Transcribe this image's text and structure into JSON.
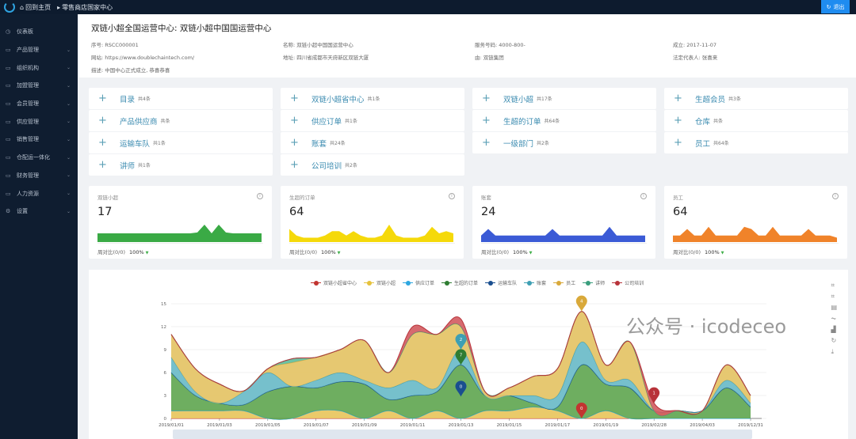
{
  "topbar": {
    "home": "回到主页",
    "breadcrumb": "零售商店国家中心",
    "exit": "退出"
  },
  "sidebar": {
    "items": [
      {
        "label": "仪表板",
        "icon": "dashboard-icon"
      },
      {
        "label": "产品管理",
        "icon": "folder-icon"
      },
      {
        "label": "组织机构",
        "icon": "folder-icon"
      },
      {
        "label": "加盟管理",
        "icon": "folder-icon"
      },
      {
        "label": "会员管理",
        "icon": "folder-icon"
      },
      {
        "label": "供应管理",
        "icon": "folder-icon"
      },
      {
        "label": "销售管理",
        "icon": "folder-icon"
      },
      {
        "label": "仓配运一体化",
        "icon": "folder-icon"
      },
      {
        "label": "财务管理",
        "icon": "folder-icon"
      },
      {
        "label": "人力资源",
        "icon": "folder-icon"
      },
      {
        "label": "设置",
        "icon": "gear-icon"
      }
    ]
  },
  "header": {
    "title": "双链小超全国运营中心: 双链小超中国国运营中心",
    "fields": [
      "序号: RSCC000001",
      "名称: 双链小超中国国运营中心",
      "服务号码: 4000-800-",
      "成立: 2017-11-07",
      "网站: https://www.doublechaintech.com/",
      "地址: 四川省成都市天府新区双链大厦",
      "由: 双链集团",
      "法定代表人: 张喜来",
      "描述: 中国中心正式成立, 恭喜恭喜"
    ]
  },
  "links": [
    {
      "label": "目录",
      "count": "共4条"
    },
    {
      "label": "双链小超省中心",
      "count": "共1条"
    },
    {
      "label": "双链小超",
      "count": "共17条"
    },
    {
      "label": "生超会员",
      "count": "共3条"
    },
    {
      "label": "产品供应商",
      "count": "共条"
    },
    {
      "label": "供应订单",
      "count": "共1条"
    },
    {
      "label": "生超的订单",
      "count": "共64条"
    },
    {
      "label": "仓库",
      "count": "共条"
    },
    {
      "label": "运输车队",
      "count": "共1条"
    },
    {
      "label": "账套",
      "count": "共24条"
    },
    {
      "label": "一级部门",
      "count": "共2条"
    },
    {
      "label": "员工",
      "count": "共64条"
    },
    {
      "label": "讲师",
      "count": "共1条"
    },
    {
      "label": "公司培训",
      "count": "共2条"
    }
  ],
  "stats": [
    {
      "title": "双链小超",
      "value": "17",
      "color": "#3aaa45",
      "compare": "周对比(0/0)",
      "pct": "100%",
      "sparkline": [
        2,
        2,
        2,
        2,
        2,
        2,
        2,
        2,
        2,
        2,
        2,
        2,
        2,
        2,
        2.2,
        4,
        2,
        4,
        2.2,
        2,
        2,
        2,
        2,
        2
      ]
    },
    {
      "title": "生超的订单",
      "value": "64",
      "color": "#f5d90a",
      "compare": "周对比(0/0)",
      "pct": "100%",
      "sparkline": [
        3,
        1.5,
        1,
        1,
        1,
        1.5,
        2.5,
        2.5,
        1.5,
        2.5,
        1.5,
        1,
        1,
        1.5,
        4,
        1.5,
        1,
        1,
        1,
        1.5,
        3.5,
        2,
        2.5,
        2
      ]
    },
    {
      "title": "账套",
      "value": "24",
      "color": "#3b5bd6",
      "compare": "周对比(0/0)",
      "pct": "100%",
      "sparkline": [
        1.5,
        3,
        1.5,
        1.5,
        1.5,
        1.5,
        1.5,
        1.5,
        1.5,
        1.5,
        3,
        1.5,
        1.5,
        1.5,
        1.5,
        1.5,
        1.5,
        1.5,
        3.5,
        1.5,
        1.5,
        1.5,
        1.5,
        1.5
      ]
    },
    {
      "title": "员工",
      "value": "64",
      "color": "#f0832a",
      "compare": "周对比(0/0)",
      "pct": "100%",
      "sparkline": [
        1.5,
        1.5,
        3,
        1.5,
        1.5,
        3.5,
        1.5,
        1.5,
        1.5,
        1.5,
        3.5,
        3,
        1.5,
        1.5,
        3.5,
        1.5,
        1.5,
        1.5,
        1.5,
        3,
        1.5,
        1.5,
        1.5,
        1
      ]
    }
  ],
  "chart_data": {
    "type": "area",
    "stacked": true,
    "smooth": true,
    "grid": true,
    "legend_position": "top",
    "ylim": [
      0,
      15
    ],
    "yticks": [
      0,
      3,
      6,
      9,
      12,
      15
    ],
    "categories": [
      "2019/01/01",
      "2019/01/02",
      "2019/01/03",
      "2019/01/04",
      "2019/01/05",
      "2019/01/06",
      "2019/01/07",
      "2019/01/08",
      "2019/01/09",
      "2019/01/10",
      "2019/01/11",
      "2019/01/12",
      "2019/01/13",
      "2019/01/14",
      "2019/01/15",
      "2019/01/16",
      "2019/01/17",
      "2019/01/18",
      "2019/01/19",
      "2019/01/20",
      "2019/02/28",
      "",
      "2019/04/03",
      "",
      "2019/12/31"
    ],
    "tick_labels": [
      "2019/01/01",
      "2019/01/03",
      "2019/01/05",
      "2019/01/07",
      "2019/01/09",
      "2019/01/11",
      "2019/01/13",
      "2019/01/15",
      "2019/01/17",
      "2019/01/19",
      "2019/02/28",
      "2019/04/03",
      "2019/12/31"
    ],
    "series": [
      {
        "name": "双链小超省中心",
        "color": "#c23531",
        "fill": "#c23531",
        "values": [
          0,
          0,
          0,
          0,
          0,
          0,
          0,
          0,
          0,
          0,
          0,
          0,
          0,
          0,
          0,
          0,
          0,
          0,
          0,
          0,
          0,
          0,
          0,
          0,
          0
        ]
      },
      {
        "name": "双链小超",
        "color": "#e6c23c",
        "fill": "#e8c45a",
        "values": [
          1,
          1,
          1,
          1,
          0,
          0,
          1,
          1,
          0,
          1,
          0,
          1,
          0,
          1,
          1,
          1.5,
          1,
          0,
          1,
          0,
          0,
          0,
          0,
          0,
          0
        ]
      },
      {
        "name": "供应订单",
        "color": "#2ea7e0",
        "fill": "#5cc0ea",
        "values": [
          0,
          0,
          0,
          0,
          0,
          0,
          0,
          0,
          0,
          0,
          0,
          0,
          0,
          0,
          0,
          0,
          0,
          0,
          0,
          0,
          0,
          0,
          0,
          0,
          0
        ]
      },
      {
        "name": "生超的订单",
        "color": "#2f7d32",
        "fill": "#5ea54f",
        "values": [
          5,
          2,
          1,
          0.8,
          3.5,
          4.2,
          3,
          3.8,
          4.5,
          1.5,
          3,
          2.5,
          7,
          2,
          2,
          0.5,
          0.5,
          7,
          3.5,
          4,
          1,
          1,
          1,
          4,
          1.5
        ]
      },
      {
        "name": "运输车队",
        "color": "#1a4f8f",
        "fill": "#1a4f8f",
        "values": [
          0,
          0,
          0,
          0,
          0,
          0,
          0,
          0,
          0,
          0,
          0,
          0,
          0,
          0,
          0,
          0,
          0,
          0,
          0,
          0,
          0,
          0,
          0,
          0,
          0
        ]
      },
      {
        "name": "账套",
        "color": "#3e9fb3",
        "fill": "#67b9c7",
        "values": [
          2,
          0.5,
          0,
          1.7,
          2.5,
          0,
          1,
          1.2,
          0.5,
          1.5,
          2,
          0.5,
          2,
          0,
          0,
          1,
          1.5,
          3,
          0.5,
          1,
          0,
          0,
          0,
          1,
          0.5
        ]
      },
      {
        "name": "员工",
        "color": "#d9a93a",
        "fill": "#e3c262",
        "values": [
          3,
          3,
          2.5,
          0.1,
          0.5,
          3.1,
          3,
          3,
          5.2,
          2,
          6,
          7,
          3,
          0.5,
          1,
          2.5,
          3.5,
          4,
          2,
          5,
          0,
          0,
          0,
          2,
          1
        ]
      },
      {
        "name": "讲师",
        "color": "#3a9e7d",
        "fill": "#5dbb9a",
        "values": [
          0,
          0,
          0,
          0,
          0,
          0.5,
          0,
          0,
          0,
          0,
          0,
          0,
          0,
          0,
          0,
          0,
          0,
          0,
          0,
          0,
          0,
          0,
          0,
          0,
          0
        ]
      },
      {
        "name": "公司培训",
        "color": "#b8333a",
        "fill": "#d25a5f",
        "values": [
          0,
          0,
          0,
          0,
          0,
          0,
          0,
          0,
          0,
          0,
          1,
          0,
          1,
          0,
          0,
          0,
          0,
          0,
          0,
          0,
          1,
          0,
          0,
          0,
          0
        ]
      }
    ],
    "markpoints": [
      {
        "series": "生超的订单",
        "category": "2019/01/13",
        "label": "7",
        "color": "#2f7d32"
      },
      {
        "series": "账套",
        "category": "2019/01/13",
        "label": "2",
        "color": "#3e9fb3"
      },
      {
        "series": "运输车队",
        "category": "2019/01/13",
        "label": "0",
        "color": "#1a4f8f"
      },
      {
        "series": "员工",
        "category": "2019/01/18",
        "label": "4",
        "color": "#d9a93a"
      },
      {
        "series": "双链小超省中心",
        "category": "2019/01/18",
        "label": "0",
        "color": "#c23531"
      },
      {
        "series": "公司培训",
        "category": "2019/02/28",
        "label": "1",
        "color": "#b8333a"
      }
    ]
  },
  "toolbox": [
    "zoom-icon",
    "zoom-reset-icon",
    "data-view-icon",
    "line-chart-icon",
    "bar-chart-icon",
    "restore-icon",
    "download-icon"
  ],
  "watermark": "公众号 · icodeceo"
}
